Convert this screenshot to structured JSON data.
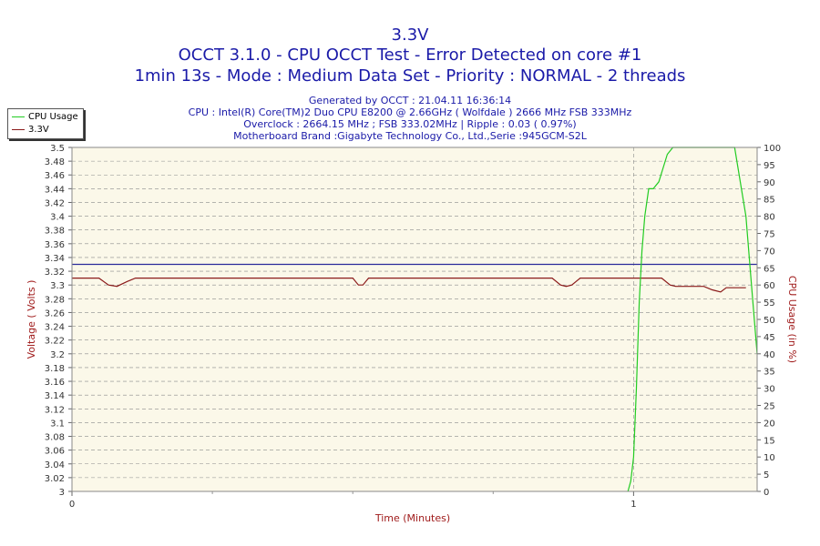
{
  "header": {
    "title": "3.3V",
    "line1": "OCCT 3.1.0 - CPU OCCT Test - Error Detected on core #1",
    "line2": "1min 13s - Mode : Medium Data Set - Priority : NORMAL - 2 threads",
    "info": [
      "Generated by OCCT : 21.04.11 16:36:14",
      "CPU : Intel(R) Core(TM)2 Duo CPU E8200 @ 2.66GHz ( Wolfdale ) 2666 MHz FSB 333MHz",
      "Overclock : 2664.15 MHz ; FSB 333.02MHz | Ripple : 0.03 ( 0.97%)",
      "Motherboard Brand :Gigabyte Technology Co., Ltd.,Serie :945GCM-S2L"
    ]
  },
  "legend": {
    "items": [
      {
        "label": "CPU Usage",
        "color": "#22cc22"
      },
      {
        "label": "3.3V",
        "color": "#8b1a1a"
      }
    ]
  },
  "chart_data": {
    "type": "line",
    "xlabel": "Time (Minutes)",
    "ylabel_left": "Voltage ( Volts )",
    "ylabel_right": "CPU Usage (in %)",
    "x_range": [
      0,
      1.22
    ],
    "x_ticks": [
      "0",
      "1"
    ],
    "ylim_left": [
      3.0,
      3.5
    ],
    "ylim_right": [
      0,
      100
    ],
    "y_left_ticks": [
      "3",
      "3.02",
      "3.04",
      "3.06",
      "3.08",
      "3.1",
      "3.12",
      "3.14",
      "3.16",
      "3.18",
      "3.2",
      "3.22",
      "3.24",
      "3.26",
      "3.28",
      "3.3",
      "3.32",
      "3.34",
      "3.36",
      "3.38",
      "3.4",
      "3.42",
      "3.44",
      "3.46",
      "3.48",
      "3.5"
    ],
    "y_right_ticks": [
      "0",
      "5",
      "10",
      "15",
      "20",
      "25",
      "30",
      "35",
      "40",
      "45",
      "50",
      "55",
      "60",
      "65",
      "70",
      "75",
      "80",
      "85",
      "90",
      "95",
      "100"
    ],
    "reference_line": 3.33,
    "grid": true,
    "series": [
      {
        "name": "3.3V",
        "axis": "left",
        "color": "#8b1a1a",
        "x": [
          0,
          0.048,
          0.065,
          0.08,
          0.098,
          0.113,
          0.5,
          0.51,
          0.518,
          0.528,
          0.855,
          0.87,
          0.88,
          0.89,
          0.905,
          1.0,
          1.05,
          1.065,
          1.075,
          1.125,
          1.14,
          1.155,
          1.165,
          1.2
        ],
        "values": [
          3.31,
          3.31,
          3.3,
          3.298,
          3.305,
          3.31,
          3.31,
          3.3,
          3.3,
          3.31,
          3.31,
          3.3,
          3.298,
          3.3,
          3.31,
          3.31,
          3.31,
          3.3,
          3.298,
          3.298,
          3.293,
          3.29,
          3.296,
          3.296
        ]
      },
      {
        "name": "CPU Usage",
        "axis": "right",
        "color": "#22cc22",
        "x": [
          0.99,
          0.995,
          1.0,
          1.005,
          1.01,
          1.015,
          1.02,
          1.027,
          1.035,
          1.045,
          1.06,
          1.07,
          1.1,
          1.14,
          1.18,
          1.2,
          1.21,
          1.22
        ],
        "values": [
          0,
          3,
          10,
          30,
          55,
          70,
          80,
          88,
          88,
          90,
          98,
          100,
          100,
          100,
          100,
          80,
          60,
          40
        ]
      }
    ]
  }
}
